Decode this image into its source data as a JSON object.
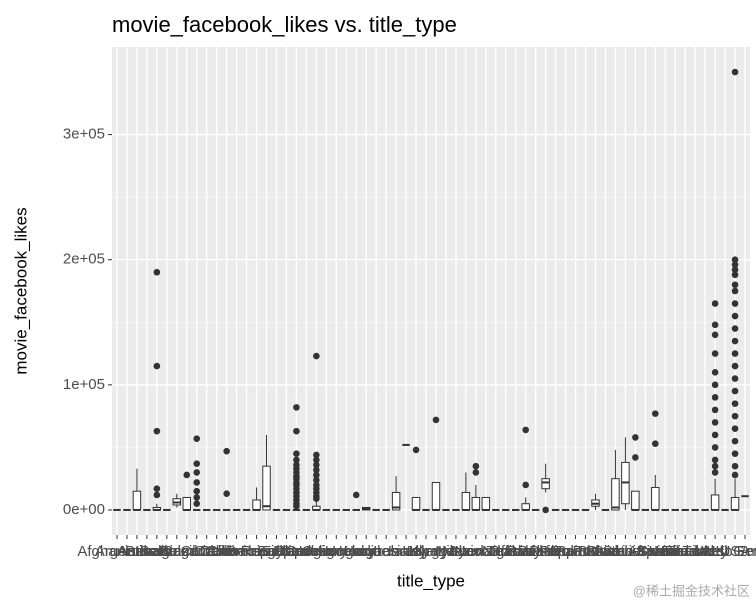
{
  "chart_data": {
    "type": "boxplot",
    "title": "movie_facebook_likes vs. title_type",
    "x_label": "title_type",
    "y_label": "movie_facebook_likes",
    "categories": [
      "Afghanistan",
      "Argentina",
      "Aruba",
      "Australia",
      "Bahamas",
      "Belgium",
      "Brazil",
      "Bulgaria",
      "Cambodia",
      "Canada",
      "Chile",
      "China",
      "Colombia",
      "Czech Republic",
      "Denmark",
      "Dominican Republic",
      "Egypt",
      "Finland",
      "France",
      "Georgia",
      "Germany",
      "Greece",
      "Hong Kong",
      "Hungary",
      "Iceland",
      "India",
      "Indonesia",
      "Iran",
      "Ireland",
      "Israel",
      "Italy",
      "Japan",
      "Kenya",
      "Kyrgyzstan",
      "Libya",
      "Mexico",
      "Netherlands",
      "New Line",
      "New Zealand",
      "Nigeria",
      "Norway",
      "Official site",
      "Pakistan",
      "Panama",
      "Peru",
      "Philippines",
      "Poland",
      "Romania",
      "Russia",
      "Slovakia",
      "Slovenia",
      "South Africa",
      "South Korea",
      "Soviet Union",
      "Spain",
      "Sweden",
      "Switzerland",
      "Taiwan",
      "Thailand",
      "Turkey",
      "UK",
      "United Arab Emirates",
      "USA",
      "West Germany"
    ],
    "boxes": [
      {
        "lower": 0,
        "q1": 0,
        "median": 0,
        "q3": 0,
        "upper": 0
      },
      {
        "lower": 0,
        "q1": 0,
        "median": 0,
        "q3": 0,
        "upper": 0
      },
      {
        "lower": 0,
        "q1": 0,
        "median": 0,
        "q3": 15000,
        "upper": 33000
      },
      {
        "lower": 0,
        "q1": 0,
        "median": 0,
        "q3": 0,
        "upper": 0
      },
      {
        "lower": 0,
        "q1": 0,
        "median": 0,
        "q3": 2000,
        "upper": 5000,
        "outliers": [
          190000,
          115000,
          63000,
          17000,
          12000
        ]
      },
      {
        "lower": 0,
        "q1": 0,
        "median": 0,
        "q3": 0,
        "upper": 0
      },
      {
        "lower": 2000,
        "q1": 4000,
        "median": 6000,
        "q3": 9000,
        "upper": 13000
      },
      {
        "lower": 0,
        "q1": 0,
        "median": 0,
        "q3": 10000,
        "upper": 10000,
        "outliers": [
          28000
        ]
      },
      {
        "lower": 0,
        "q1": 0,
        "median": 0,
        "q3": 0,
        "upper": 0,
        "outliers": [
          57000,
          37000,
          30000,
          22000,
          15000,
          10000,
          5000
        ]
      },
      {
        "lower": 0,
        "q1": 0,
        "median": 0,
        "q3": 0,
        "upper": 0
      },
      {
        "lower": 0,
        "q1": 0,
        "median": 0,
        "q3": 0,
        "upper": 0
      },
      {
        "lower": 0,
        "q1": 0,
        "median": 0,
        "q3": 0,
        "upper": 0,
        "outliers": [
          47000,
          13000
        ]
      },
      {
        "lower": 0,
        "q1": 0,
        "median": 0,
        "q3": 0,
        "upper": 0
      },
      {
        "lower": 0,
        "q1": 0,
        "median": 0,
        "q3": 0,
        "upper": 0
      },
      {
        "lower": 0,
        "q1": 0,
        "median": 0,
        "q3": 8000,
        "upper": 18000
      },
      {
        "lower": 0,
        "q1": 0,
        "median": 3000,
        "q3": 35000,
        "upper": 60000
      },
      {
        "lower": 0,
        "q1": 0,
        "median": 0,
        "q3": 0,
        "upper": 0
      },
      {
        "lower": 0,
        "q1": 0,
        "median": 0,
        "q3": 0,
        "upper": 0
      },
      {
        "lower": 0,
        "q1": 0,
        "median": 0,
        "q3": 0,
        "upper": 0,
        "outliers": [
          82000,
          63000,
          45000,
          40000,
          36000,
          33000,
          30000,
          27000,
          25000,
          22000,
          20000,
          17000,
          14000,
          11000,
          8000,
          5000,
          3000
        ]
      },
      {
        "lower": 0,
        "q1": 0,
        "median": 0,
        "q3": 0,
        "upper": 0
      },
      {
        "lower": 0,
        "q1": 0,
        "median": 0,
        "q3": 3000,
        "upper": 7000,
        "outliers": [
          123000,
          44000,
          40000,
          36000,
          32000,
          28000,
          24000,
          20000,
          17000,
          14000,
          11000,
          9000
        ]
      },
      {
        "lower": 0,
        "q1": 0,
        "median": 0,
        "q3": 0,
        "upper": 0
      },
      {
        "lower": 0,
        "q1": 0,
        "median": 0,
        "q3": 0,
        "upper": 0
      },
      {
        "lower": 0,
        "q1": 0,
        "median": 0,
        "q3": 0,
        "upper": 0
      },
      {
        "lower": 0,
        "q1": 0,
        "median": 0,
        "q3": 0,
        "upper": 0,
        "outliers": [
          12000
        ]
      },
      {
        "lower": 0,
        "q1": 0,
        "median": 1000,
        "q3": 2000,
        "upper": 2000
      },
      {
        "lower": 0,
        "q1": 0,
        "median": 0,
        "q3": 0,
        "upper": 0
      },
      {
        "lower": 0,
        "q1": 0,
        "median": 0,
        "q3": 0,
        "upper": 0
      },
      {
        "lower": 0,
        "q1": 0,
        "median": 2000,
        "q3": 14000,
        "upper": 27000
      },
      {
        "lower": 52000,
        "q1": 52000,
        "median": 52000,
        "q3": 52000,
        "upper": 52000
      },
      {
        "lower": 0,
        "q1": 0,
        "median": 0,
        "q3": 10000,
        "upper": 10000,
        "outliers": [
          48000
        ]
      },
      {
        "lower": 0,
        "q1": 0,
        "median": 0,
        "q3": 0,
        "upper": 0
      },
      {
        "lower": 0,
        "q1": 0,
        "median": 0,
        "q3": 22000,
        "upper": 22000,
        "outliers": [
          72000
        ]
      },
      {
        "lower": 0,
        "q1": 0,
        "median": 0,
        "q3": 0,
        "upper": 0
      },
      {
        "lower": 0,
        "q1": 0,
        "median": 0,
        "q3": 0,
        "upper": 0
      },
      {
        "lower": 0,
        "q1": 0,
        "median": 0,
        "q3": 14000,
        "upper": 30000
      },
      {
        "lower": 0,
        "q1": 0,
        "median": 0,
        "q3": 10000,
        "upper": 20000,
        "outliers": [
          35000,
          30000
        ]
      },
      {
        "lower": 0,
        "q1": 0,
        "median": 0,
        "q3": 10000,
        "upper": 10000
      },
      {
        "lower": 0,
        "q1": 0,
        "median": 0,
        "q3": 0,
        "upper": 0
      },
      {
        "lower": 0,
        "q1": 0,
        "median": 0,
        "q3": 0,
        "upper": 0
      },
      {
        "lower": 0,
        "q1": 0,
        "median": 0,
        "q3": 0,
        "upper": 0
      },
      {
        "lower": 0,
        "q1": 0,
        "median": 0,
        "q3": 5000,
        "upper": 10000,
        "outliers": [
          64000,
          20000
        ]
      },
      {
        "lower": 0,
        "q1": 0,
        "median": 0,
        "q3": 0,
        "upper": 0
      },
      {
        "lower": 14000,
        "q1": 17000,
        "median": 22000,
        "q3": 25000,
        "upper": 37000,
        "outliers": [
          0
        ]
      },
      {
        "lower": 0,
        "q1": 0,
        "median": 0,
        "q3": 0,
        "upper": 0
      },
      {
        "lower": 0,
        "q1": 0,
        "median": 0,
        "q3": 0,
        "upper": 0
      },
      {
        "lower": 0,
        "q1": 0,
        "median": 0,
        "q3": 0,
        "upper": 0
      },
      {
        "lower": 0,
        "q1": 0,
        "median": 0,
        "q3": 0,
        "upper": 0
      },
      {
        "lower": 0,
        "q1": 3000,
        "median": 5000,
        "q3": 8000,
        "upper": 13000
      },
      {
        "lower": 0,
        "q1": 0,
        "median": 0,
        "q3": 0,
        "upper": 0
      },
      {
        "lower": 0,
        "q1": 0,
        "median": 2000,
        "q3": 25000,
        "upper": 48000
      },
      {
        "lower": 0,
        "q1": 5000,
        "median": 22000,
        "q3": 38000,
        "upper": 58000
      },
      {
        "lower": 0,
        "q1": 0,
        "median": 0,
        "q3": 15000,
        "upper": 15000,
        "outliers": [
          58000,
          42000
        ]
      },
      {
        "lower": 0,
        "q1": 0,
        "median": 0,
        "q3": 0,
        "upper": 0
      },
      {
        "lower": 0,
        "q1": 0,
        "median": 0,
        "q3": 18000,
        "upper": 28000,
        "outliers": [
          77000,
          53000
        ]
      },
      {
        "lower": 0,
        "q1": 0,
        "median": 0,
        "q3": 0,
        "upper": 0
      },
      {
        "lower": 0,
        "q1": 0,
        "median": 0,
        "q3": 0,
        "upper": 0
      },
      {
        "lower": 0,
        "q1": 0,
        "median": 0,
        "q3": 0,
        "upper": 0
      },
      {
        "lower": 0,
        "q1": 0,
        "median": 0,
        "q3": 0,
        "upper": 0
      },
      {
        "lower": 0,
        "q1": 0,
        "median": 0,
        "q3": 0,
        "upper": 0
      },
      {
        "lower": 0,
        "q1": 0,
        "median": 0,
        "q3": 12000,
        "upper": 25000,
        "outliers": [
          165000,
          148000,
          140000,
          125000,
          110000,
          100000,
          90000,
          80000,
          70000,
          60000,
          50000,
          40000,
          35000,
          30000
        ]
      },
      {
        "lower": 0,
        "q1": 0,
        "median": 0,
        "q3": 0,
        "upper": 0
      },
      {
        "lower": 0,
        "q1": 0,
        "median": 0,
        "q3": 10000,
        "upper": 25000,
        "outliers": [
          350000,
          200000,
          196000,
          192000,
          188000,
          180000,
          175000,
          165000,
          155000,
          145000,
          135000,
          125000,
          115000,
          105000,
          95000,
          85000,
          75000,
          65000,
          55000,
          45000,
          35000,
          28000
        ]
      },
      {
        "lower": 11000,
        "q1": 11000,
        "median": 11000,
        "q3": 11000,
        "upper": 11000
      }
    ],
    "ylim": [
      -20000,
      370000
    ],
    "yticks": [
      {
        "value": 0,
        "label": "0e+00"
      },
      {
        "value": 100000,
        "label": "1e+05"
      },
      {
        "value": 200000,
        "label": "2e+05"
      },
      {
        "value": 300000,
        "label": "3e+05"
      }
    ],
    "grid": true,
    "box_fill": "#ffffff",
    "box_stroke": "#333333",
    "panel_color": "#ebebeb"
  },
  "watermark": "@稀土掘金技术社区"
}
